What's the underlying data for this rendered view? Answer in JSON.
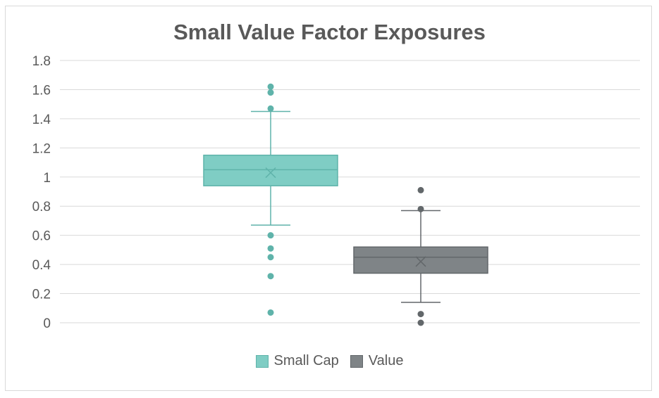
{
  "chart_data": {
    "type": "box",
    "title": "Small Value Factor Exposures",
    "ylim": [
      0,
      1.8
    ],
    "yticks": [
      "0",
      "0.2",
      "0.4",
      "0.6",
      "0.8",
      "1",
      "1.2",
      "1.4",
      "1.6",
      "1.8"
    ],
    "grid": true,
    "legend_position": "bottom",
    "series": [
      {
        "name": "Small Cap",
        "color": "#7fcdc4",
        "stroke": "#5fb3aa",
        "min": 0.67,
        "q1": 0.94,
        "median": 1.05,
        "q3": 1.15,
        "max": 1.45,
        "mean": 1.03,
        "outliers": [
          1.62,
          1.58,
          1.47,
          0.6,
          0.51,
          0.45,
          0.32,
          0.07
        ]
      },
      {
        "name": "Value",
        "color": "#7f8487",
        "stroke": "#62676a",
        "min": 0.14,
        "q1": 0.34,
        "median": 0.45,
        "q3": 0.52,
        "max": 0.77,
        "mean": 0.42,
        "outliers": [
          0.91,
          0.78,
          0.06,
          0.0
        ]
      }
    ]
  }
}
